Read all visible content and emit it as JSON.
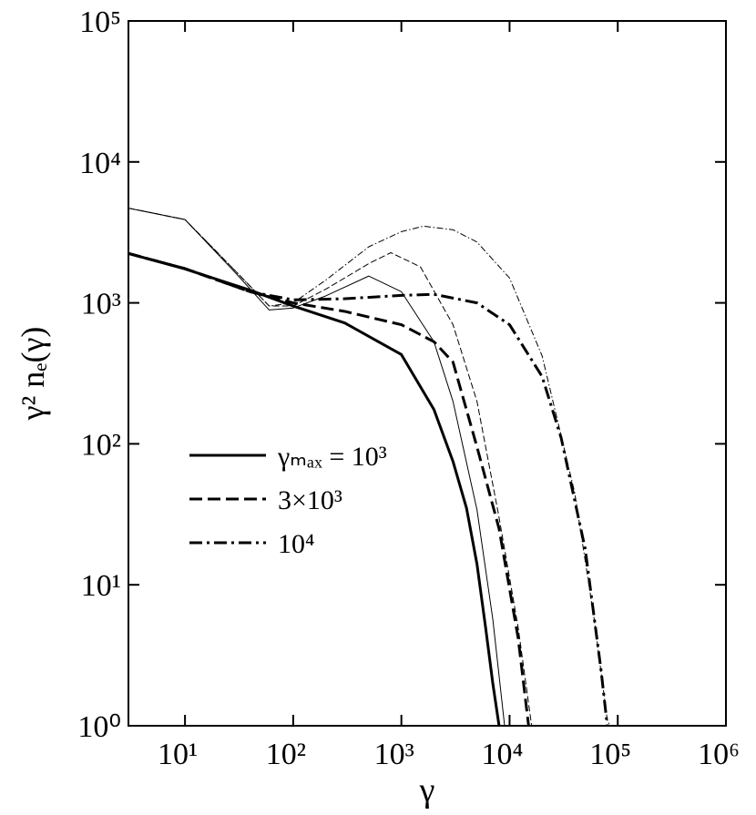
{
  "chart_data": {
    "type": "line",
    "xlabel": "γ",
    "ylabel": "γ² nₑ(γ)",
    "log_x": true,
    "log_y": true,
    "xlim": [
      3,
      1000000
    ],
    "ylim": [
      1,
      100000
    ],
    "xticks": [
      {
        "value": 10,
        "label": "10¹"
      },
      {
        "value": 100,
        "label": "10²"
      },
      {
        "value": 1000,
        "label": "10³"
      },
      {
        "value": 10000,
        "label": "10⁴"
      },
      {
        "value": 100000,
        "label": "10⁵"
      },
      {
        "value": 1000000,
        "label": "10⁶"
      }
    ],
    "yticks": [
      {
        "value": 1,
        "label": "10⁰"
      },
      {
        "value": 10,
        "label": "10¹"
      },
      {
        "value": 100,
        "label": "10²"
      },
      {
        "value": 1000,
        "label": "10³"
      },
      {
        "value": 10000,
        "label": "10⁴"
      },
      {
        "value": 100000,
        "label": "10⁵"
      }
    ],
    "legend": "lower left",
    "series": [
      {
        "name": "γₘₐₓ = 10³",
        "color": "#000000",
        "dash": "solid",
        "linewidth": 3,
        "x": [
          3,
          10,
          40,
          100,
          300,
          1000,
          2000,
          3000,
          4000,
          5000,
          6000,
          7000,
          8000
        ],
        "values": [
          2240,
          1740,
          1230,
          950,
          720,
          430,
          175,
          75,
          35,
          14,
          5,
          2,
          1
        ]
      },
      {
        "name": "3×10³",
        "color": "#000000",
        "dash": "dashed",
        "linewidth": 3,
        "x": [
          3,
          10,
          40,
          100,
          300,
          1000,
          2000,
          3000,
          5000,
          8000,
          12000,
          15000
        ],
        "values": [
          2240,
          1750,
          1200,
          1000,
          870,
          700,
          530,
          380,
          95,
          25,
          4.2,
          1
        ]
      },
      {
        "name": "10⁴",
        "color": "#000000",
        "dash": "dashdot",
        "linewidth": 3,
        "x": [
          3,
          10,
          40,
          100,
          300,
          1000,
          2000,
          5000,
          10000,
          20000,
          30000,
          50000,
          70000,
          80000
        ],
        "values": [
          2240,
          1750,
          1200,
          1050,
          1070,
          1130,
          1150,
          1000,
          700,
          300,
          110,
          18,
          2.5,
          1
        ]
      },
      {
        "color": "#000000",
        "dash": "solid",
        "linewidth": 1,
        "x": [
          3,
          10,
          30,
          60,
          100,
          200,
          500,
          1000,
          2000,
          3000,
          5000,
          7000,
          9000
        ],
        "values": [
          4700,
          3900,
          1600,
          890,
          920,
          1120,
          1550,
          1200,
          530,
          200,
          34,
          5.7,
          1
        ]
      },
      {
        "color": "#000000",
        "dash": "dashed",
        "linewidth": 1,
        "x": [
          3,
          10,
          30,
          60,
          100,
          200,
          500,
          800,
          1500,
          3000,
          5000,
          8000,
          12000,
          16000
        ],
        "values": [
          4700,
          3900,
          1650,
          950,
          950,
          1250,
          1900,
          2270,
          1800,
          700,
          200,
          30,
          5,
          1
        ]
      },
      {
        "color": "#000000",
        "dash": "dashdot",
        "linewidth": 1,
        "x": [
          3,
          10,
          30,
          60,
          100,
          200,
          500,
          1000,
          1600,
          3000,
          5000,
          10000,
          20000,
          40000,
          60000,
          80000,
          85000
        ],
        "values": [
          4700,
          3900,
          1650,
          950,
          1000,
          1450,
          2500,
          3200,
          3500,
          3300,
          2700,
          1500,
          420,
          45,
          6,
          1.1,
          1
        ]
      }
    ]
  }
}
